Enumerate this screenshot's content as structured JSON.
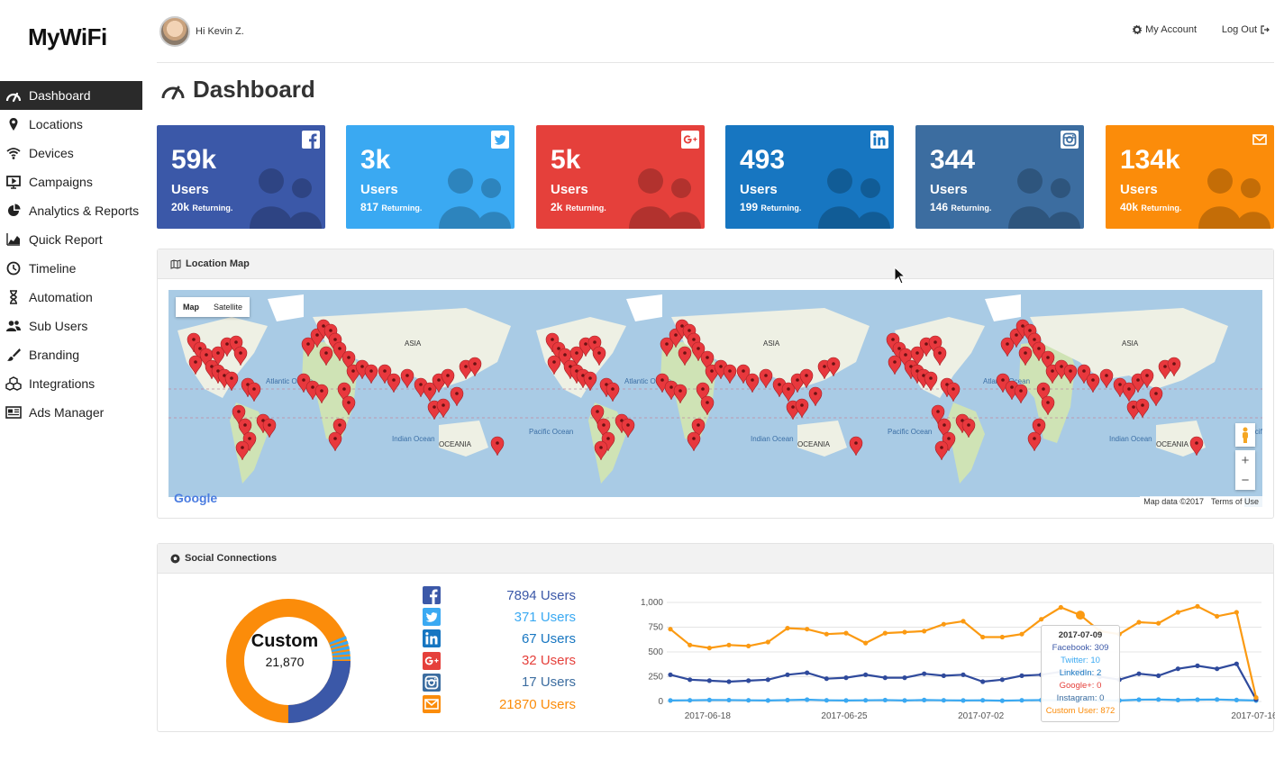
{
  "app": {
    "logo": "MyWiFi"
  },
  "sidebar": {
    "items": [
      {
        "label": "Dashboard",
        "icon": "gauge-icon",
        "active": true
      },
      {
        "label": "Locations",
        "icon": "map-marker-icon"
      },
      {
        "label": "Devices",
        "icon": "wifi-icon"
      },
      {
        "label": "Campaigns",
        "icon": "campaign-icon"
      },
      {
        "label": "Analytics & Reports",
        "icon": "pie-chart-icon"
      },
      {
        "label": "Quick Report",
        "icon": "area-chart-icon"
      },
      {
        "label": "Timeline",
        "icon": "clock-icon"
      },
      {
        "label": "Automation",
        "icon": "hourglass-icon"
      },
      {
        "label": "Sub Users",
        "icon": "users-icon"
      },
      {
        "label": "Branding",
        "icon": "paint-brush-icon"
      },
      {
        "label": "Integrations",
        "icon": "cubes-icon"
      },
      {
        "label": "Ads Manager",
        "icon": "newspaper-icon"
      }
    ]
  },
  "header": {
    "greeting": "Hi Kevin Z.",
    "my_account": "My Account",
    "logout": "Log Out"
  },
  "page": {
    "title": "Dashboard"
  },
  "cards": [
    {
      "network": "facebook",
      "count": "59k",
      "label": "Users",
      "returning_count": "20k",
      "returning_label": "Returning.",
      "color": "#3b58a8"
    },
    {
      "network": "twitter",
      "count": "3k",
      "label": "Users",
      "returning_count": "817",
      "returning_label": "Returning.",
      "color": "#3aa9f2"
    },
    {
      "network": "google-plus",
      "count": "5k",
      "label": "Users",
      "returning_count": "2k",
      "returning_label": "Returning.",
      "color": "#e5403b"
    },
    {
      "network": "linkedin",
      "count": "493",
      "label": "Users",
      "returning_count": "199",
      "returning_label": "Returning.",
      "color": "#1776c1"
    },
    {
      "network": "instagram",
      "count": "344",
      "label": "Users",
      "returning_count": "146",
      "returning_label": "Returning.",
      "color": "#3c6da0"
    },
    {
      "network": "email",
      "count": "134k",
      "label": "Users",
      "returning_count": "40k",
      "returning_label": "Returning.",
      "color": "#fb8c0a"
    }
  ],
  "location_map": {
    "title": "Location Map",
    "type_buttons": [
      "Map",
      "Satellite"
    ],
    "selected_type": "Map",
    "labels": [
      "ASIA",
      "OCEANIA",
      "Indian Ocean",
      "Pacific Ocean",
      "Atlantic Ocean"
    ],
    "attribution": "Map data ©2017",
    "terms": "Terms of Use",
    "logo": "Google"
  },
  "social": {
    "title": "Social Connections",
    "donut": {
      "label": "Custom",
      "value": "21,870"
    },
    "list": [
      {
        "network": "facebook",
        "text": "7894 Users",
        "color": "#3b58a8"
      },
      {
        "network": "twitter",
        "text": "371 Users",
        "color": "#3aa9f2"
      },
      {
        "network": "linkedin",
        "text": "67 Users",
        "color": "#1776c1"
      },
      {
        "network": "google-plus",
        "text": "32 Users",
        "color": "#e5403b"
      },
      {
        "network": "instagram",
        "text": "17 Users",
        "color": "#3c6da0"
      },
      {
        "network": "email",
        "text": "21870 Users",
        "color": "#fb8c0a"
      }
    ],
    "tooltip": {
      "date": "2017-07-09",
      "lines": [
        {
          "text": "Facebook: 309",
          "color": "#3b58a8"
        },
        {
          "text": "Twitter: 10",
          "color": "#3aa9f2"
        },
        {
          "text": "LinkedIn: 2",
          "color": "#1776c1"
        },
        {
          "text": "Google+: 0",
          "color": "#e5403b"
        },
        {
          "text": "Instagram: 0",
          "color": "#3c6da0"
        },
        {
          "text": "Custom User: 872",
          "color": "#fb8c0a"
        }
      ]
    }
  },
  "chart_data": {
    "type": "line",
    "yticks": [
      "1,000",
      "750",
      "500",
      "250",
      "0"
    ],
    "ylim": [
      0,
      1000
    ],
    "xticks": [
      "2017-06-18",
      "2017-06-25",
      "2017-07-02",
      "2017-07-16"
    ],
    "grid": true,
    "series": [
      {
        "name": "Custom User",
        "color": "#fb9a12",
        "values": [
          730,
          570,
          540,
          570,
          560,
          600,
          740,
          730,
          680,
          690,
          590,
          690,
          700,
          710,
          780,
          810,
          650,
          650,
          680,
          830,
          950,
          872,
          710,
          680,
          800,
          790,
          900,
          960,
          860,
          900,
          40
        ]
      },
      {
        "name": "Facebook",
        "color": "#2f4a9c",
        "values": [
          270,
          220,
          210,
          200,
          210,
          220,
          270,
          290,
          230,
          240,
          270,
          240,
          240,
          280,
          260,
          270,
          200,
          220,
          260,
          270,
          300,
          309,
          250,
          220,
          280,
          260,
          330,
          360,
          330,
          380,
          20
        ]
      },
      {
        "name": "Twitter",
        "color": "#3aa9f2",
        "values": [
          10,
          12,
          15,
          14,
          12,
          10,
          14,
          18,
          12,
          10,
          12,
          14,
          10,
          15,
          12,
          10,
          12,
          8,
          12,
          14,
          12,
          10,
          12,
          10,
          18,
          20,
          15,
          18,
          20,
          15,
          10
        ]
      }
    ]
  }
}
